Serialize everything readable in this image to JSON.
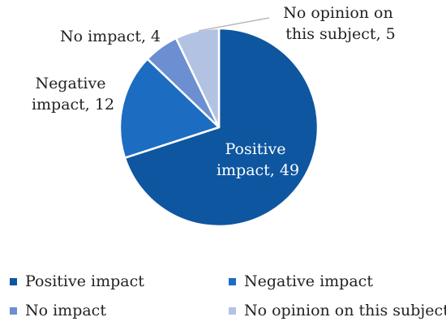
{
  "chart_data": {
    "type": "pie",
    "categories": [
      "Positive impact",
      "Negative impact",
      "No impact",
      "No opinion on this subject"
    ],
    "values": [
      49,
      12,
      4,
      5
    ],
    "colors": [
      "#0e56a0",
      "#1c6dc2",
      "#6b8fd0",
      "#b2c2e3"
    ],
    "data_labels": [
      "Positive impact, 49",
      "Negative impact, 12",
      "No impact, 4",
      "No opinion on this subject, 5"
    ],
    "title": "",
    "legend_position": "bottom"
  }
}
